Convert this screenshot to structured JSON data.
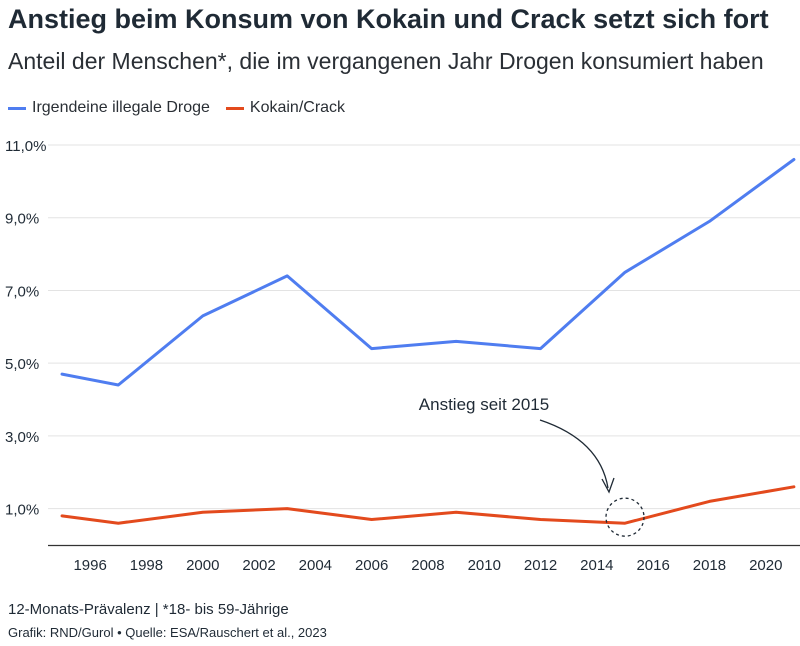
{
  "header": {
    "title": "Anstieg beim Konsum von Kokain und Crack setzt sich fort",
    "subtitle": "Anteil der Menschen*, die im vergangenen Jahr Drogen konsumiert haben"
  },
  "footer": {
    "note": "12-Monats-Prävalenz | *18- bis 59-Jährige",
    "source": "Grafik: RND/Gurol • Quelle: ESA/Rauschert et al., 2023"
  },
  "colors": {
    "series_1": "#4f7df0",
    "series_2": "#e34a1d",
    "grid": "#e3e3e3",
    "text": "#1f2a35"
  },
  "chart_data": {
    "type": "line",
    "title": "Anstieg beim Konsum von Kokain und Crack setzt sich fort",
    "subtitle": "Anteil der Menschen*, die im vergangenen Jahr Drogen konsumiert haben",
    "xlabel": "",
    "ylabel": "",
    "x": [
      1995,
      1997,
      2000,
      2003,
      2006,
      2009,
      2012,
      2015,
      2018,
      2021
    ],
    "series": [
      {
        "name": "Irgendeine illegale Droge",
        "color": "#4f7df0",
        "values": [
          4.7,
          4.4,
          6.3,
          7.4,
          5.4,
          5.6,
          5.4,
          7.5,
          8.9,
          10.6
        ]
      },
      {
        "name": "Kokain/Crack",
        "color": "#e34a1d",
        "values": [
          0.8,
          0.6,
          0.9,
          1.0,
          0.7,
          0.9,
          0.7,
          0.6,
          1.2,
          1.6
        ]
      }
    ],
    "x_ticks": [
      1996,
      1998,
      2000,
      2002,
      2004,
      2006,
      2008,
      2010,
      2012,
      2014,
      2016,
      2018,
      2020
    ],
    "x_tick_labels": [
      "1996",
      "1998",
      "2000",
      "2002",
      "2004",
      "2006",
      "2008",
      "2010",
      "2012",
      "2014",
      "2016",
      "2018",
      "2020"
    ],
    "y_ticks": [
      1,
      3,
      5,
      7,
      9,
      11
    ],
    "y_tick_labels": [
      "1,0%",
      "3,0%",
      "5,0%",
      "7,0%",
      "9,0%",
      "11,0%"
    ],
    "xlim": [
      1994.7,
      2021.3
    ],
    "ylim": [
      0,
      11
    ],
    "grid": true,
    "legend": "top-left",
    "annotation": {
      "text": "Anstieg seit 2015",
      "x": 2015,
      "y": 0.6
    }
  }
}
